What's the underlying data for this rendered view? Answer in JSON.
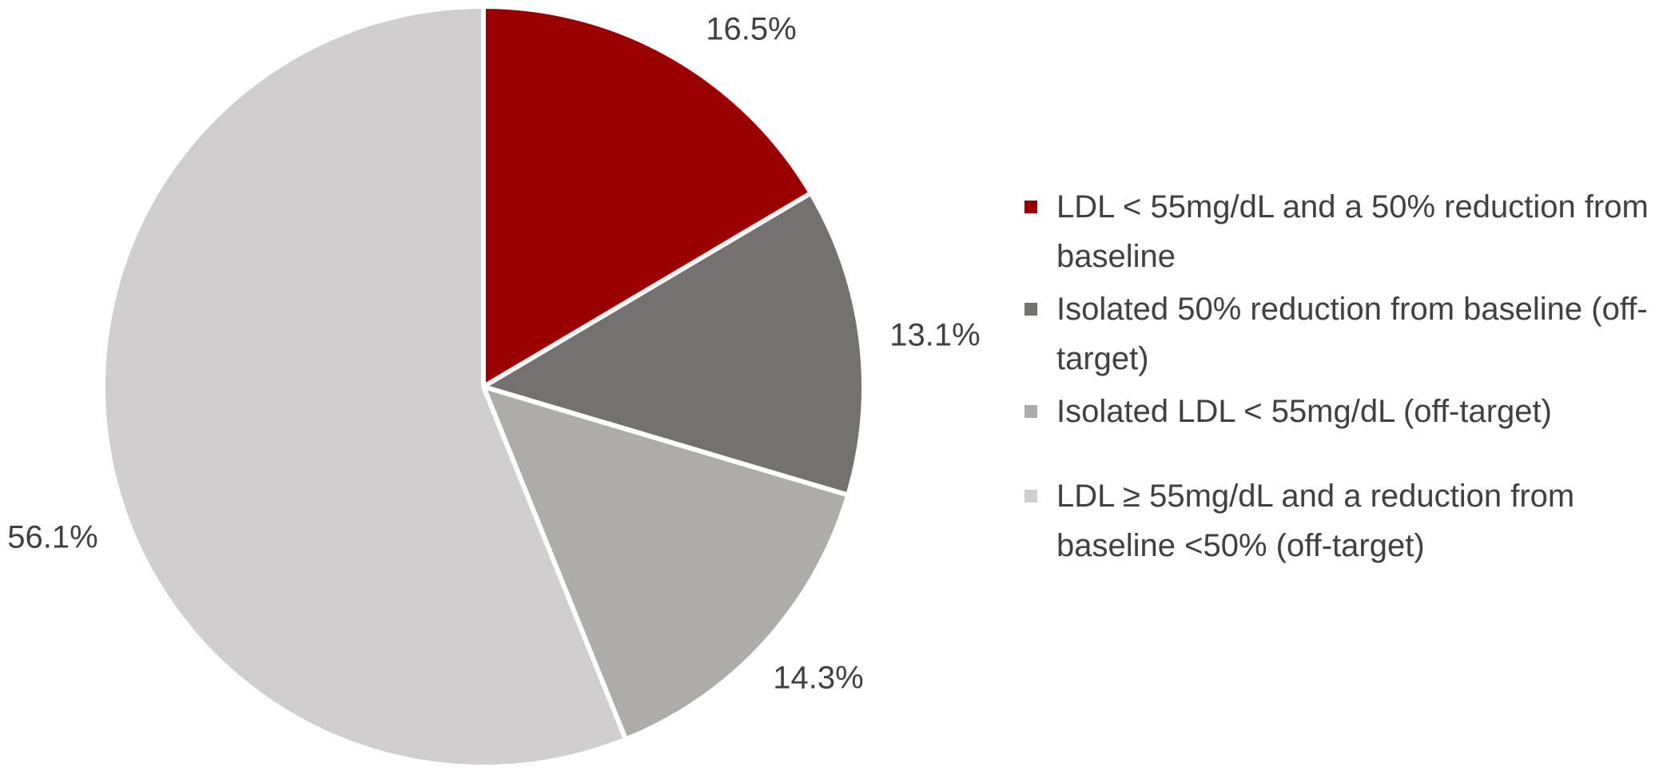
{
  "chart_data": {
    "type": "pie",
    "title": "",
    "legend_position": "right",
    "slices": [
      {
        "label": "LDL < 55mg/dL and a 50% reduction from baseline",
        "value": 16.5,
        "display": "16.5%",
        "color": "#9a0000"
      },
      {
        "label": "Isolated 50% reduction from baseline (off-target)",
        "value": 13.1,
        "display": "13.1%",
        "color": "#767171"
      },
      {
        "label": "Isolated LDL < 55mg/dL (off-target)",
        "value": 14.3,
        "display": "14.3%",
        "color": "#aeabab"
      },
      {
        "label": "LDL ≥ 55mg/dL and a reduction from baseline <50% (off-target)",
        "value": 56.1,
        "display": "56.1%",
        "color": "#d0cece"
      }
    ]
  }
}
